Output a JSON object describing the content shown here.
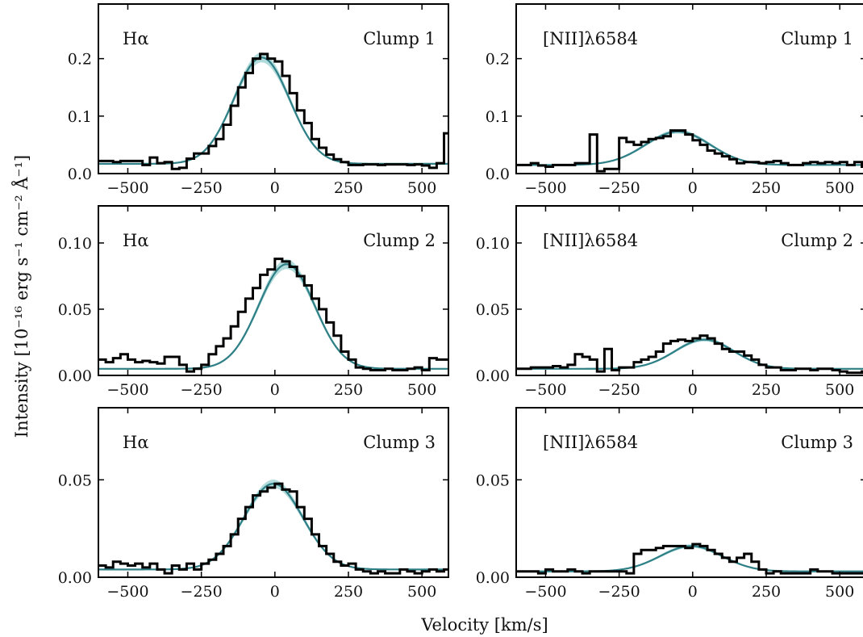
{
  "chart_data": [
    {
      "type": "line",
      "row": 0,
      "col": 0,
      "line_label": "Hα",
      "clump_label": "Clump 1",
      "xlim": [
        -600,
        590
      ],
      "ylim": [
        0,
        0.295
      ],
      "yticks": [
        0.0,
        0.1,
        0.2
      ],
      "ytick_labels": [
        "0.0",
        "0.1",
        "0.2"
      ],
      "xticks": [
        -500,
        -250,
        0,
        250,
        500
      ],
      "xtick_labels": [
        "−500",
        "−250",
        "0",
        "250",
        "500"
      ],
      "fit": {
        "amplitude": 0.185,
        "center": -45,
        "sigma": 95,
        "baseline": 0.017
      },
      "observed": {
        "bin_edges": [
          -600,
          -575,
          -550,
          -525,
          -500,
          -475,
          -450,
          -425,
          -400,
          -375,
          -350,
          -325,
          -300,
          -275,
          -250,
          -225,
          -200,
          -175,
          -150,
          -125,
          -100,
          -75,
          -50,
          -25,
          0,
          25,
          50,
          75,
          100,
          125,
          150,
          175,
          200,
          225,
          250,
          275,
          300,
          325,
          350,
          375,
          400,
          425,
          450,
          475,
          500,
          525,
          550,
          575,
          590
        ],
        "values": [
          0.022,
          0.022,
          0.02,
          0.022,
          0.022,
          0.022,
          0.015,
          0.028,
          0.018,
          0.02,
          0.008,
          0.01,
          0.026,
          0.035,
          0.035,
          0.048,
          0.06,
          0.085,
          0.118,
          0.15,
          0.175,
          0.2,
          0.208,
          0.2,
          0.195,
          0.17,
          0.14,
          0.11,
          0.088,
          0.06,
          0.045,
          0.033,
          0.025,
          0.02,
          0.015,
          0.015,
          0.016,
          0.016,
          0.015,
          0.016,
          0.016,
          0.016,
          0.015,
          0.016,
          0.014,
          0.01,
          0.018,
          0.07
        ]
      }
    },
    {
      "type": "line",
      "row": 0,
      "col": 1,
      "line_label": "[NII]λ6584",
      "clump_label": "Clump 1",
      "xlim": [
        -600,
        590
      ],
      "ylim": [
        0,
        0.295
      ],
      "yticks": [
        0.0,
        0.1,
        0.2
      ],
      "ytick_labels": [
        "0.0",
        "0.1",
        "0.2"
      ],
      "xticks": [
        -500,
        -250,
        0,
        250,
        500
      ],
      "xtick_labels": [
        "−500",
        "−250",
        "0",
        "250",
        "500"
      ],
      "fit": {
        "amplitude": 0.058,
        "center": -50,
        "sigma": 110,
        "baseline": 0.015
      },
      "observed": {
        "bin_edges": [
          -600,
          -575,
          -550,
          -525,
          -500,
          -475,
          -450,
          -425,
          -400,
          -375,
          -350,
          -325,
          -300,
          -275,
          -250,
          -225,
          -200,
          -175,
          -150,
          -125,
          -100,
          -75,
          -50,
          -25,
          0,
          25,
          50,
          75,
          100,
          125,
          150,
          175,
          200,
          225,
          250,
          275,
          300,
          325,
          350,
          375,
          400,
          425,
          450,
          475,
          500,
          525,
          550,
          575,
          590
        ],
        "values": [
          0.015,
          0.015,
          0.018,
          0.014,
          0.012,
          0.015,
          0.015,
          0.015,
          0.018,
          0.018,
          0.068,
          0.004,
          0.008,
          0.008,
          0.062,
          0.055,
          0.05,
          0.055,
          0.06,
          0.062,
          0.065,
          0.075,
          0.075,
          0.068,
          0.058,
          0.05,
          0.04,
          0.035,
          0.03,
          0.025,
          0.018,
          0.02,
          0.02,
          0.018,
          0.02,
          0.022,
          0.018,
          0.015,
          0.015,
          0.018,
          0.02,
          0.018,
          0.02,
          0.018,
          0.02,
          0.015,
          0.02,
          0.012
        ]
      }
    },
    {
      "type": "line",
      "row": 1,
      "col": 0,
      "line_label": "Hα",
      "clump_label": "Clump 2",
      "xlim": [
        -600,
        590
      ],
      "ylim": [
        0,
        0.128
      ],
      "yticks": [
        0.0,
        0.05,
        0.1
      ],
      "ytick_labels": [
        "0.00",
        "0.05",
        "0.10"
      ],
      "xticks": [
        -500,
        -250,
        0,
        250,
        500
      ],
      "xtick_labels": [
        "−500",
        "−250",
        "0",
        "250",
        "500"
      ],
      "fit": {
        "amplitude": 0.079,
        "center": 40,
        "sigma": 95,
        "baseline": 0.005
      },
      "observed": {
        "bin_edges": [
          -600,
          -575,
          -550,
          -525,
          -500,
          -475,
          -450,
          -425,
          -400,
          -375,
          -350,
          -325,
          -300,
          -275,
          -250,
          -225,
          -200,
          -175,
          -150,
          -125,
          -100,
          -75,
          -50,
          -25,
          0,
          25,
          50,
          75,
          100,
          125,
          150,
          175,
          200,
          225,
          250,
          275,
          300,
          325,
          350,
          375,
          400,
          425,
          450,
          475,
          500,
          525,
          550,
          575,
          590
        ],
        "values": [
          0.012,
          0.01,
          0.013,
          0.016,
          0.012,
          0.01,
          0.011,
          0.01,
          0.009,
          0.014,
          0.014,
          0.008,
          0.003,
          0.005,
          0.008,
          0.016,
          0.022,
          0.028,
          0.037,
          0.048,
          0.058,
          0.066,
          0.076,
          0.08,
          0.088,
          0.086,
          0.082,
          0.075,
          0.068,
          0.058,
          0.05,
          0.04,
          0.03,
          0.018,
          0.012,
          0.006,
          0.005,
          0.004,
          0.004,
          0.005,
          0.004,
          0.004,
          0.005,
          0.006,
          0.004,
          0.013,
          0.012,
          0.012
        ]
      }
    },
    {
      "type": "line",
      "row": 1,
      "col": 1,
      "line_label": "[NII]λ6584",
      "clump_label": "Clump 2",
      "xlim": [
        -600,
        590
      ],
      "ylim": [
        0,
        0.128
      ],
      "yticks": [
        0.0,
        0.05,
        0.1
      ],
      "ytick_labels": [
        "0.00",
        "0.05",
        "0.10"
      ],
      "xticks": [
        -500,
        -250,
        0,
        250,
        500
      ],
      "xtick_labels": [
        "−500",
        "−250",
        "0",
        "250",
        "500"
      ],
      "fit": {
        "amplitude": 0.022,
        "center": 40,
        "sigma": 100,
        "baseline": 0.005
      },
      "observed": {
        "bin_edges": [
          -600,
          -575,
          -550,
          -525,
          -500,
          -475,
          -450,
          -425,
          -400,
          -375,
          -350,
          -325,
          -300,
          -275,
          -250,
          -225,
          -200,
          -175,
          -150,
          -125,
          -100,
          -75,
          -50,
          -25,
          0,
          25,
          50,
          75,
          100,
          125,
          150,
          175,
          200,
          225,
          250,
          275,
          300,
          325,
          350,
          375,
          400,
          425,
          450,
          475,
          500,
          525,
          550,
          575,
          590
        ],
        "values": [
          0.005,
          0.005,
          0.006,
          0.006,
          0.006,
          0.007,
          0.006,
          0.008,
          0.016,
          0.014,
          0.012,
          0.003,
          0.02,
          0.004,
          0.006,
          0.006,
          0.01,
          0.012,
          0.014,
          0.018,
          0.024,
          0.026,
          0.027,
          0.026,
          0.028,
          0.03,
          0.028,
          0.024,
          0.02,
          0.018,
          0.018,
          0.015,
          0.012,
          0.008,
          0.006,
          0.006,
          0.004,
          0.004,
          0.005,
          0.005,
          0.004,
          0.005,
          0.005,
          0.004,
          0.003,
          0.002,
          0.002,
          0.003
        ]
      }
    },
    {
      "type": "line",
      "row": 2,
      "col": 0,
      "line_label": "Hα",
      "clump_label": "Clump 3",
      "xlim": [
        -600,
        590
      ],
      "ylim": [
        0,
        0.087
      ],
      "yticks": [
        0.0,
        0.05
      ],
      "ytick_labels": [
        "0.00",
        "0.05"
      ],
      "xticks": [
        -500,
        -250,
        0,
        250,
        500
      ],
      "xtick_labels": [
        "−500",
        "−250",
        "0",
        "250",
        "500"
      ],
      "fit": {
        "amplitude": 0.044,
        "center": -5,
        "sigma": 100,
        "baseline": 0.004
      },
      "observed": {
        "bin_edges": [
          -600,
          -575,
          -550,
          -525,
          -500,
          -475,
          -450,
          -425,
          -400,
          -375,
          -350,
          -325,
          -300,
          -275,
          -250,
          -225,
          -200,
          -175,
          -150,
          -125,
          -100,
          -75,
          -50,
          -25,
          0,
          25,
          50,
          75,
          100,
          125,
          150,
          175,
          200,
          225,
          250,
          275,
          300,
          325,
          350,
          375,
          400,
          425,
          450,
          475,
          500,
          525,
          550,
          575,
          590
        ],
        "values": [
          0.006,
          0.005,
          0.008,
          0.007,
          0.006,
          0.007,
          0.005,
          0.007,
          0.004,
          0.002,
          0.006,
          0.004,
          0.007,
          0.004,
          0.007,
          0.009,
          0.012,
          0.016,
          0.022,
          0.03,
          0.036,
          0.042,
          0.044,
          0.046,
          0.048,
          0.045,
          0.044,
          0.036,
          0.03,
          0.022,
          0.016,
          0.012,
          0.008,
          0.006,
          0.007,
          0.004,
          0.003,
          0.002,
          0.003,
          0.002,
          0.002,
          0.004,
          0.003,
          0.002,
          0.003,
          0.004,
          0.003,
          0.004
        ]
      }
    },
    {
      "type": "line",
      "row": 2,
      "col": 1,
      "line_label": "[NII]λ6584",
      "clump_label": "Clump 3",
      "xlim": [
        -600,
        590
      ],
      "ylim": [
        0,
        0.087
      ],
      "yticks": [
        0.0,
        0.05
      ],
      "ytick_labels": [
        "0.00",
        "0.05"
      ],
      "xticks": [
        -500,
        -250,
        0,
        250,
        500
      ],
      "xtick_labels": [
        "−500",
        "−250",
        "0",
        "250",
        "500"
      ],
      "fit": {
        "amplitude": 0.013,
        "center": -5,
        "sigma": 105,
        "baseline": 0.003
      },
      "observed": {
        "bin_edges": [
          -600,
          -575,
          -550,
          -525,
          -500,
          -475,
          -450,
          -425,
          -400,
          -375,
          -350,
          -325,
          -300,
          -275,
          -250,
          -225,
          -200,
          -175,
          -150,
          -125,
          -100,
          -75,
          -50,
          -25,
          0,
          25,
          50,
          75,
          100,
          125,
          150,
          175,
          200,
          225,
          250,
          275,
          300,
          325,
          350,
          375,
          400,
          425,
          450,
          475,
          500,
          525,
          550,
          575,
          590
        ],
        "values": [
          0.003,
          0.003,
          0.003,
          0.002,
          0.004,
          0.003,
          0.003,
          0.004,
          0.003,
          0.002,
          0.003,
          0.003,
          0.003,
          0.003,
          0.003,
          0.002,
          0.012,
          0.014,
          0.014,
          0.015,
          0.016,
          0.016,
          0.016,
          0.015,
          0.017,
          0.016,
          0.014,
          0.012,
          0.01,
          0.008,
          0.01,
          0.012,
          0.008,
          0.004,
          0.002,
          0.003,
          0.002,
          0.002,
          0.002,
          0.002,
          0.004,
          0.003,
          0.003,
          0.002,
          0.002,
          0.002,
          0.002,
          0.002
        ]
      }
    }
  ],
  "figure": {
    "ylabel": "Intensity [10⁻¹⁶ erg s⁻¹ cm⁻² Å⁻¹]",
    "xlabel": "Velocity [km/s]",
    "colors": {
      "observed": "#000000",
      "fit": "#2f7f86",
      "fit_band": "#9fd2d2"
    }
  }
}
